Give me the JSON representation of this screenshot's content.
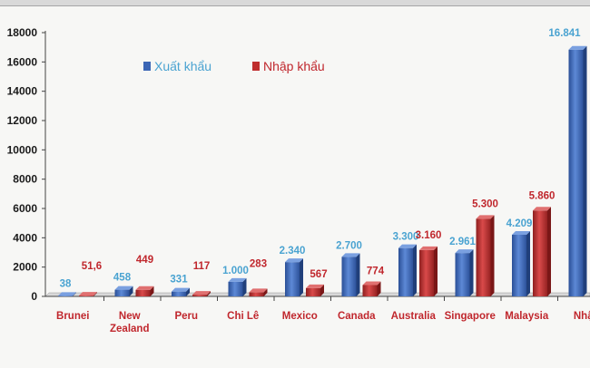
{
  "chart_data": {
    "type": "bar",
    "categories": [
      "Brunei",
      "New Zealand",
      "Peru",
      "Chi Lê",
      "Mexico",
      "Canada",
      "Australia",
      "Singapore",
      "Malaysia",
      "Nhậ"
    ],
    "series": [
      {
        "name": "Xuất khẩu",
        "values": [
          38,
          458,
          331,
          1000,
          2340,
          2700,
          3300,
          2961,
          4209,
          16841
        ],
        "labels": [
          "38",
          "458",
          "331",
          "1.000",
          "2.340",
          "2.700",
          "3.300",
          "2.961",
          "4.209",
          "16.841"
        ],
        "color": "#3b66b5",
        "label_color": "#4aa3d1"
      },
      {
        "name": "Nhập khẩu",
        "values": [
          51.6,
          449,
          117,
          283,
          567,
          774,
          3160,
          5300,
          5860,
          null
        ],
        "labels": [
          "51,6",
          "449",
          "117",
          "283",
          "567",
          "774",
          "3.160",
          "5.300",
          "5.860",
          ""
        ],
        "color": "#bf2e2e",
        "label_color": "#c0272d"
      }
    ],
    "yticks": [
      "0",
      "2000",
      "4000",
      "6000",
      "8000",
      "10000",
      "12000",
      "14000",
      "16000",
      "18000"
    ],
    "ylim": [
      0,
      18000
    ],
    "grid": false,
    "legend_position": "top-left"
  }
}
